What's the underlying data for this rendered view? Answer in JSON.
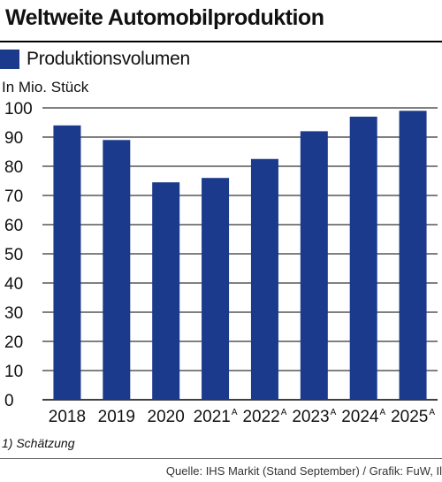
{
  "title": "Weltweite Automobilproduktion",
  "legend": {
    "label": "Produktionsvolumen"
  },
  "unit_label": "In Mio. Stück",
  "footnote": "1) Schätzung",
  "source": "Quelle: IHS Markit (Stand September) / Grafik: FuW, Il",
  "colors": {
    "bar": "#1b3a8c",
    "grid": "#000000"
  },
  "chart_data": {
    "type": "bar",
    "categories": [
      "2018",
      "2019",
      "2020",
      "2021",
      "2022",
      "2023",
      "2024",
      "2025"
    ],
    "category_superscripts": [
      "",
      "",
      "",
      "A",
      "A",
      "A",
      "A",
      "A"
    ],
    "series": [
      {
        "name": "Produktionsvolumen",
        "values": [
          94,
          89,
          74.5,
          76,
          82.5,
          92,
          97,
          99
        ]
      }
    ],
    "ylabel": "In Mio. Stück",
    "ylim": [
      0,
      100
    ],
    "yticks": [
      0,
      10,
      20,
      30,
      40,
      50,
      60,
      70,
      80,
      90,
      100
    ],
    "grid": true
  }
}
